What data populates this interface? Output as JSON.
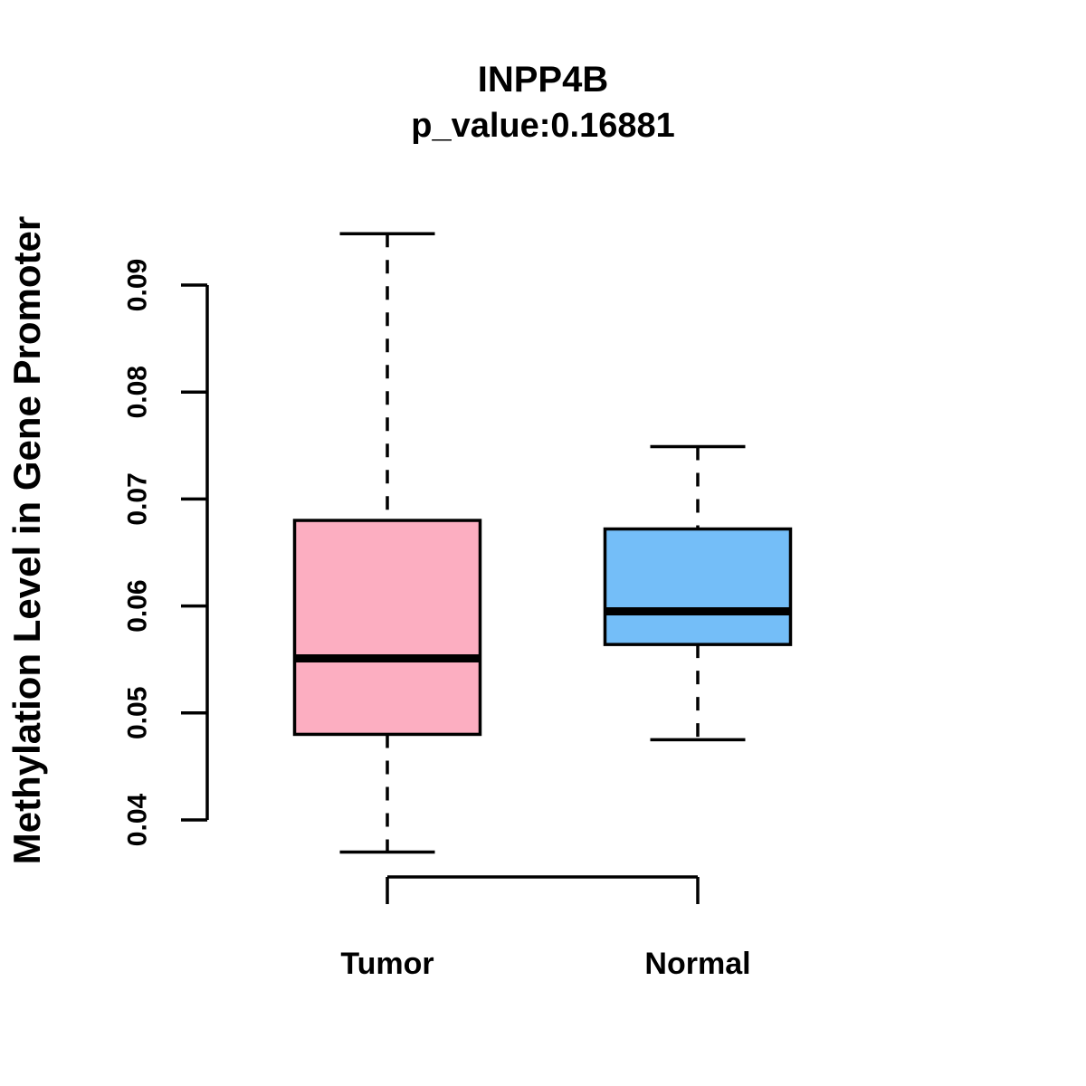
{
  "chart_data": {
    "type": "boxplot",
    "title": "INPP4B",
    "subtitle": "p_value:0.16881",
    "ylabel": "Methylation Level in Gene Promoter",
    "xlabel": "",
    "categories": [
      "Tumor",
      "Normal"
    ],
    "yticks": [
      0.04,
      0.05,
      0.06,
      0.07,
      0.08,
      0.09
    ],
    "ytick_labels": [
      "0.04",
      "0.05",
      "0.06",
      "0.07",
      "0.08",
      "0.09"
    ],
    "ylim": [
      0.037,
      0.095
    ],
    "grid": false,
    "legend": "none",
    "series": [
      {
        "name": "Tumor",
        "color": "#FCAEC1",
        "lower_whisker": 0.037,
        "q1": 0.048,
        "median": 0.0551,
        "q3": 0.068,
        "upper_whisker": 0.0948
      },
      {
        "name": "Normal",
        "color": "#74BEF8",
        "lower_whisker": 0.0475,
        "q1": 0.0564,
        "median": 0.0595,
        "q3": 0.0672,
        "upper_whisker": 0.0749
      }
    ],
    "colors": {
      "box_border": "#000000",
      "median_line": "#000000",
      "axis": "#000000",
      "background": "#FFFFFF"
    }
  }
}
